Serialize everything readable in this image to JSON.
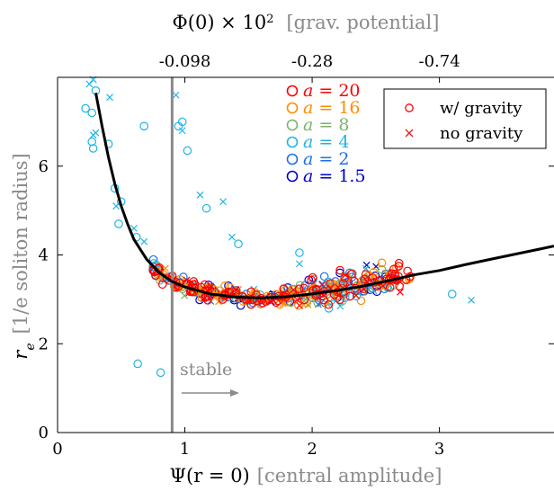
{
  "chart_data": {
    "type": "scatter",
    "xlabel_main": "Ψ(r = 0)",
    "xlabel_note": "[central amplitude]",
    "ylabel_main": "r",
    "ylabel_sub": "e",
    "ylabel_note": "[1/e soliton radius]",
    "top_xlabel_main": "Φ(0) × 10",
    "top_xlabel_sup": "2",
    "top_xlabel_note": "[grav. potential]",
    "xlim": [
      0,
      3.9
    ],
    "ylim": [
      0,
      8
    ],
    "x_ticks": [
      0,
      1,
      2,
      3
    ],
    "y_ticks": [
      0,
      2,
      4,
      6
    ],
    "top_ticks": [
      {
        "x": 1.0,
        "label": "-0.098"
      },
      {
        "x": 2.0,
        "label": "-0.28"
      },
      {
        "x": 3.0,
        "label": "-0.74"
      }
    ],
    "stability_line_x": 0.9,
    "stable_label": "stable",
    "legend_markers": [
      {
        "marker": "circle",
        "label": "w/ gravity"
      },
      {
        "marker": "cross",
        "label": "no gravity"
      }
    ],
    "a_labels": [
      {
        "var": "a",
        "eq": " = 20",
        "color": "#ff0000"
      },
      {
        "var": "a",
        "eq": " = 16",
        "color": "#ff8c00"
      },
      {
        "var": "a",
        "eq": " = 8",
        "color": "#7cb36a"
      },
      {
        "var": "a",
        "eq": " = 4",
        "color": "#1eb4e6"
      },
      {
        "var": "a",
        "eq": " = 2",
        "color": "#1e6ee6"
      },
      {
        "var": "a",
        "eq": " = 1.5",
        "color": "#0000c8"
      }
    ],
    "fit_curve": [
      [
        0.3,
        7.65
      ],
      [
        0.35,
        6.9
      ],
      [
        0.4,
        6.2
      ],
      [
        0.45,
        5.6
      ],
      [
        0.5,
        5.1
      ],
      [
        0.55,
        4.7
      ],
      [
        0.6,
        4.35
      ],
      [
        0.7,
        3.9
      ],
      [
        0.8,
        3.6
      ],
      [
        0.9,
        3.4
      ],
      [
        1.0,
        3.28
      ],
      [
        1.2,
        3.12
      ],
      [
        1.4,
        3.05
      ],
      [
        1.6,
        3.03
      ],
      [
        1.8,
        3.06
      ],
      [
        2.0,
        3.12
      ],
      [
        2.2,
        3.2
      ],
      [
        2.4,
        3.3
      ],
      [
        2.6,
        3.42
      ],
      [
        2.8,
        3.55
      ],
      [
        3.0,
        3.65
      ],
      [
        3.2,
        3.78
      ],
      [
        3.4,
        3.9
      ],
      [
        3.6,
        4.02
      ],
      [
        3.8,
        4.14
      ],
      [
        3.9,
        4.2
      ]
    ],
    "outliers_circle": [
      [
        0.22,
        7.3
      ],
      [
        0.27,
        7.2
      ],
      [
        0.28,
        6.4
      ],
      [
        0.27,
        6.55
      ],
      [
        0.3,
        7.7
      ],
      [
        0.4,
        6.5
      ],
      [
        0.45,
        5.5
      ],
      [
        0.5,
        5.2
      ],
      [
        0.48,
        4.7
      ],
      [
        0.62,
        4.4
      ],
      [
        0.68,
        6.9
      ],
      [
        0.95,
        6.9
      ],
      [
        0.98,
        7.0
      ],
      [
        1.02,
        6.35
      ],
      [
        1.17,
        5.05
      ],
      [
        1.42,
        4.25
      ],
      [
        1.9,
        4.05
      ],
      [
        0.63,
        1.55
      ],
      [
        0.81,
        1.35
      ],
      [
        3.1,
        3.12
      ]
    ],
    "outliers_cross": [
      [
        0.25,
        7.85
      ],
      [
        0.28,
        7.95
      ],
      [
        0.41,
        7.55
      ],
      [
        0.3,
        6.75
      ],
      [
        0.28,
        6.7
      ],
      [
        0.46,
        5.1
      ],
      [
        0.6,
        4.6
      ],
      [
        0.68,
        4.3
      ],
      [
        0.93,
        7.6
      ],
      [
        0.98,
        6.8
      ],
      [
        1.12,
        5.35
      ],
      [
        1.3,
        5.2
      ],
      [
        1.37,
        4.4
      ],
      [
        1.9,
        3.8
      ],
      [
        3.25,
        2.98
      ]
    ]
  }
}
